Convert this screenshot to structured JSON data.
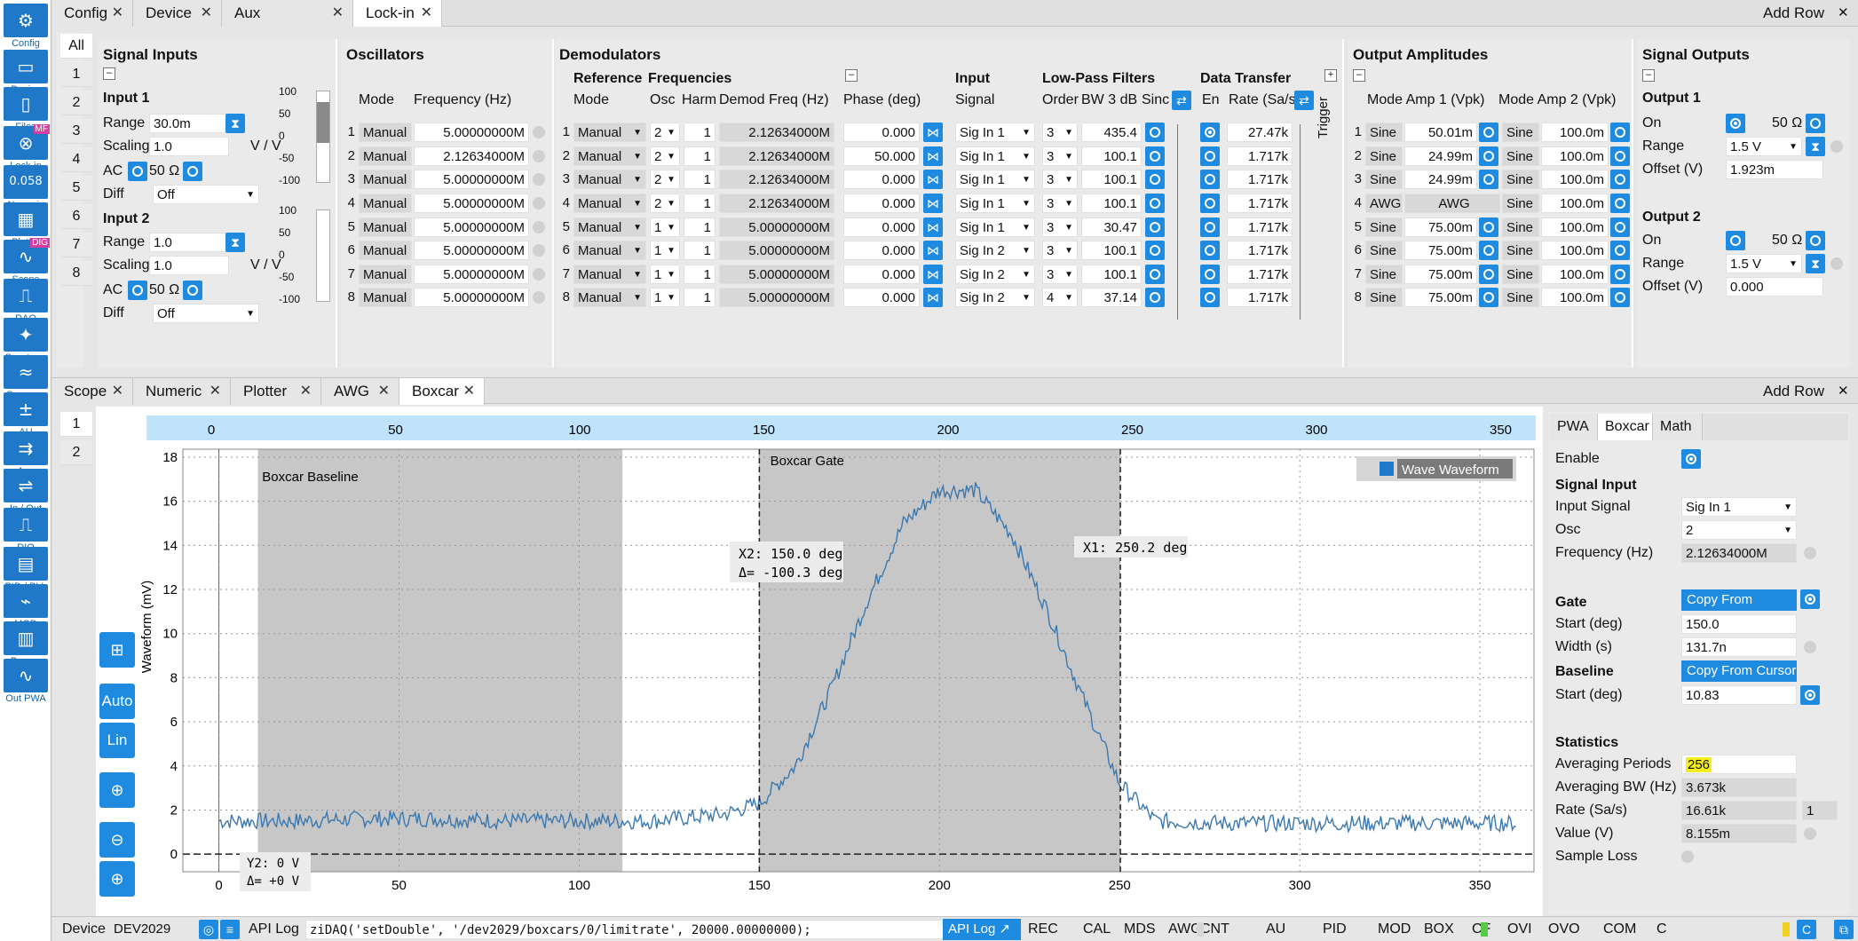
{
  "sidebar": {
    "items": [
      {
        "label": "Config",
        "icon": "gear-icon"
      },
      {
        "label": "Device",
        "icon": "device-icon"
      },
      {
        "label": "Files",
        "icon": "folder-icon"
      },
      {
        "label": "Lock-in",
        "icon": "lockin-icon",
        "badge": "MF"
      },
      {
        "label": "Numeric",
        "icon": "numeric-icon",
        "glyph": "0.058"
      },
      {
        "label": "Plotter",
        "icon": "plotter-icon"
      },
      {
        "label": "Scope",
        "icon": "scope-icon",
        "badge": "DIG"
      },
      {
        "label": "DAQ",
        "icon": "daq-icon"
      },
      {
        "label": "Spectrum",
        "icon": "spectrum-icon"
      },
      {
        "label": "Sweeper",
        "icon": "sweeper-icon"
      },
      {
        "label": "AU",
        "icon": "arithmetic-icon"
      },
      {
        "label": "Aux",
        "icon": "aux-icon"
      },
      {
        "label": "In / Out",
        "icon": "inout-icon"
      },
      {
        "label": "DIO",
        "icon": "dio-icon"
      },
      {
        "label": "PID / PLL",
        "icon": "pid-icon"
      },
      {
        "label": "MOD",
        "icon": "mod-icon"
      },
      {
        "label": "Boxcar",
        "icon": "boxcar-icon"
      },
      {
        "label": "Out PWA",
        "icon": "pwa-icon"
      }
    ]
  },
  "top_tabs": [
    "Config",
    "Device",
    "Aux",
    "Lock-in"
  ],
  "add_row": "Add Row",
  "row_tabs_top": [
    "All",
    "1",
    "2",
    "3",
    "4",
    "5",
    "6",
    "7",
    "8"
  ],
  "signal_inputs": {
    "title": "Signal Inputs",
    "input1": {
      "title": "Input 1",
      "range_label": "Range",
      "range": "30.0m",
      "scaling_label": "Scaling",
      "scaling": "1.0",
      "unit": "V / V",
      "ac_label": "AC",
      "ohm": "50 Ω",
      "diff_label": "Diff",
      "diff": "Off"
    },
    "input2": {
      "title": "Input 2",
      "range_label": "Range",
      "range": "1.0",
      "scaling_label": "Scaling",
      "scaling": "1.0",
      "unit": "V / V",
      "ac_label": "AC",
      "ohm": "50 Ω",
      "diff_label": "Diff",
      "diff": "Off"
    },
    "scale_ticks": [
      "100",
      "50",
      "0",
      "-50",
      "-100"
    ]
  },
  "oscillators": {
    "title": "Oscillators",
    "mode_h": "Mode",
    "freq_h": "Frequency (Hz)",
    "rows": [
      [
        "Manual",
        "5.00000000M"
      ],
      [
        "Manual",
        "2.12634000M"
      ],
      [
        "Manual",
        "5.00000000M"
      ],
      [
        "Manual",
        "5.00000000M"
      ],
      [
        "Manual",
        "5.00000000M"
      ],
      [
        "Manual",
        "5.00000000M"
      ],
      [
        "Manual",
        "5.00000000M"
      ],
      [
        "Manual",
        "5.00000000M"
      ]
    ]
  },
  "demods": {
    "title": "Demodulators",
    "ref_h": "Reference",
    "freq_group": "Frequencies",
    "mode_h": "Mode",
    "osc_h": "Osc",
    "harm_h": "Harm",
    "dfreq_h": "Demod Freq (Hz)",
    "phase_h": "Phase (deg)",
    "input_group": "Input",
    "signal_h": "Signal",
    "lpf_group": "Low-Pass Filters",
    "order_h": "Order",
    "bw_h": "BW 3 dB",
    "sinc_h": "Sinc",
    "dt_group": "Data Transfer",
    "en_h": "En",
    "rate_h": "Rate (Sa/s)",
    "trigger": "Trigger",
    "rows": [
      [
        "Manual",
        "2",
        "1",
        "2.12634000M",
        "0.000",
        "Sig In 1",
        "3",
        "435.4",
        "27.47k"
      ],
      [
        "Manual",
        "2",
        "1",
        "2.12634000M",
        "50.000",
        "Sig In 1",
        "3",
        "100.1",
        "1.717k"
      ],
      [
        "Manual",
        "2",
        "1",
        "2.12634000M",
        "0.000",
        "Sig In 1",
        "3",
        "100.1",
        "1.717k"
      ],
      [
        "Manual",
        "2",
        "1",
        "2.12634000M",
        "0.000",
        "Sig In 1",
        "3",
        "100.1",
        "1.717k"
      ],
      [
        "Manual",
        "1",
        "1",
        "5.00000000M",
        "0.000",
        "Sig In 1",
        "3",
        "30.47",
        "1.717k"
      ],
      [
        "Manual",
        "1",
        "1",
        "5.00000000M",
        "0.000",
        "Sig In 2",
        "3",
        "100.1",
        "1.717k"
      ],
      [
        "Manual",
        "1",
        "1",
        "5.00000000M",
        "0.000",
        "Sig In 2",
        "3",
        "100.1",
        "1.717k"
      ],
      [
        "Manual",
        "1",
        "1",
        "5.00000000M",
        "0.000",
        "Sig In 2",
        "4",
        "37.14",
        "1.717k"
      ]
    ]
  },
  "out_amps": {
    "title": "Output Amplitudes",
    "h1": "Mode Amp 1 (Vpk)",
    "h2": "Mode Amp 2 (Vpk)",
    "rows": [
      [
        "Sine",
        "50.01m",
        "Sine",
        "100.0m"
      ],
      [
        "Sine",
        "24.99m",
        "Sine",
        "100.0m"
      ],
      [
        "Sine",
        "24.99m",
        "Sine",
        "100.0m"
      ],
      [
        "AWG",
        "AWG",
        "Sine",
        "100.0m"
      ],
      [
        "Sine",
        "75.00m",
        "Sine",
        "100.0m"
      ],
      [
        "Sine",
        "75.00m",
        "Sine",
        "100.0m"
      ],
      [
        "Sine",
        "75.00m",
        "Sine",
        "100.0m"
      ],
      [
        "Sine",
        "75.00m",
        "Sine",
        "100.0m"
      ]
    ]
  },
  "sig_outs": {
    "title": "Signal Outputs",
    "o1": {
      "title": "Output 1",
      "on": "On",
      "ohm": "50 Ω",
      "range_label": "Range",
      "range": "1.5 V",
      "offset_label": "Offset (V)",
      "offset": "1.923m"
    },
    "o2": {
      "title": "Output 2",
      "on": "On",
      "ohm": "50 Ω",
      "range_label": "Range",
      "range": "1.5 V",
      "offset_label": "Offset (V)",
      "offset": "0.000"
    }
  },
  "bottom_tabs": [
    "Scope",
    "Numeric",
    "Plotter",
    "AWG",
    "Boxcar"
  ],
  "row_tabs_bottom": [
    "1",
    "2"
  ],
  "plot": {
    "ylabel": "Waveform (mV)",
    "yticks": [
      "0",
      "2",
      "4",
      "6",
      "8",
      "10",
      "12",
      "14",
      "16",
      "18"
    ],
    "xticks": [
      "0",
      "50",
      "100",
      "150",
      "200",
      "250",
      "300",
      "350"
    ],
    "top_ticks": [
      "0",
      "50",
      "100",
      "150",
      "200",
      "250",
      "300",
      "350"
    ],
    "baseline_label": "Boxcar Baseline",
    "gate_label": "Boxcar Gate",
    "legend": "Wave Waveform",
    "x2": "X2: 150.0 deg",
    "dx": "Δ= -100.3 deg",
    "x1": "X1: 250.2 deg",
    "y2": "Y2: 0 V",
    "dy": "Δ= +0 V",
    "tools": {
      "auto": "Auto",
      "lin": "Lin"
    }
  },
  "chart_data": {
    "type": "line",
    "xlabel": "",
    "ylabel": "Waveform (mV)",
    "xlim": [
      -10,
      365
    ],
    "ylim": [
      -0.8,
      18.2
    ],
    "series": [
      {
        "name": "Wave Waveform",
        "x": [
          0,
          20,
          40,
          60,
          80,
          100,
          120,
          140,
          150,
          160,
          170,
          180,
          190,
          200,
          210,
          220,
          230,
          240,
          250,
          260,
          280,
          300,
          320,
          340,
          360
        ],
        "y": [
          1.5,
          1.5,
          1.6,
          1.6,
          1.5,
          1.5,
          1.5,
          1.8,
          2.3,
          4.0,
          7.5,
          11.5,
          15.0,
          16.5,
          16.5,
          14.5,
          11.0,
          7.0,
          3.2,
          1.5,
          1.4,
          1.4,
          1.4,
          1.4,
          1.4
        ]
      }
    ],
    "regions": [
      {
        "name": "Boxcar Baseline",
        "x": [
          10.83,
          112
        ]
      },
      {
        "name": "Boxcar Gate",
        "x": [
          150.0,
          250.2
        ]
      }
    ]
  },
  "rpanel": {
    "tabs": [
      "PWA",
      "Boxcar",
      "Math"
    ],
    "enable": "Enable",
    "sig_title": "Signal Input",
    "input_signal_label": "Input Signal",
    "input_signal": "Sig In 1",
    "osc_label": "Osc",
    "osc": "2",
    "freq_label": "Frequency (Hz)",
    "freq": "2.12634000M",
    "gate_title": "Gate",
    "copy_cursors": "Copy From Cursors",
    "start_label": "Start (deg)",
    "start": "150.0",
    "width_label": "Width (s)",
    "width": "131.7n",
    "base_title": "Baseline",
    "copy_cursor": "Copy From Cursor",
    "bstart_label": "Start (deg)",
    "bstart": "10.83",
    "stats_title": "Statistics",
    "avg_periods_label": "Averaging Periods",
    "avg_periods": "256",
    "avg_bw_label": "Averaging BW (Hz)",
    "avg_bw": "3.673k",
    "rate_label": "Rate (Sa/s)",
    "rate": "16.61k",
    "rate2": "1",
    "value_label": "Value (V)",
    "value": "8.155m",
    "loss_label": "Sample Loss"
  },
  "status": {
    "device_label": "Device",
    "device": "DEV2029",
    "api_label": "API Log",
    "cmd": "ziDAQ('setDouble', '/dev2029/boxcars/0/limitrate', 20000.00000000);",
    "api_btn": "API Log",
    "items": [
      "REC",
      "CAL",
      "MDS",
      "AWG",
      "CNT",
      "AU",
      "PID",
      "MOD",
      "BOX",
      "CF",
      "OVI",
      "OVO",
      "COM",
      "C"
    ]
  }
}
